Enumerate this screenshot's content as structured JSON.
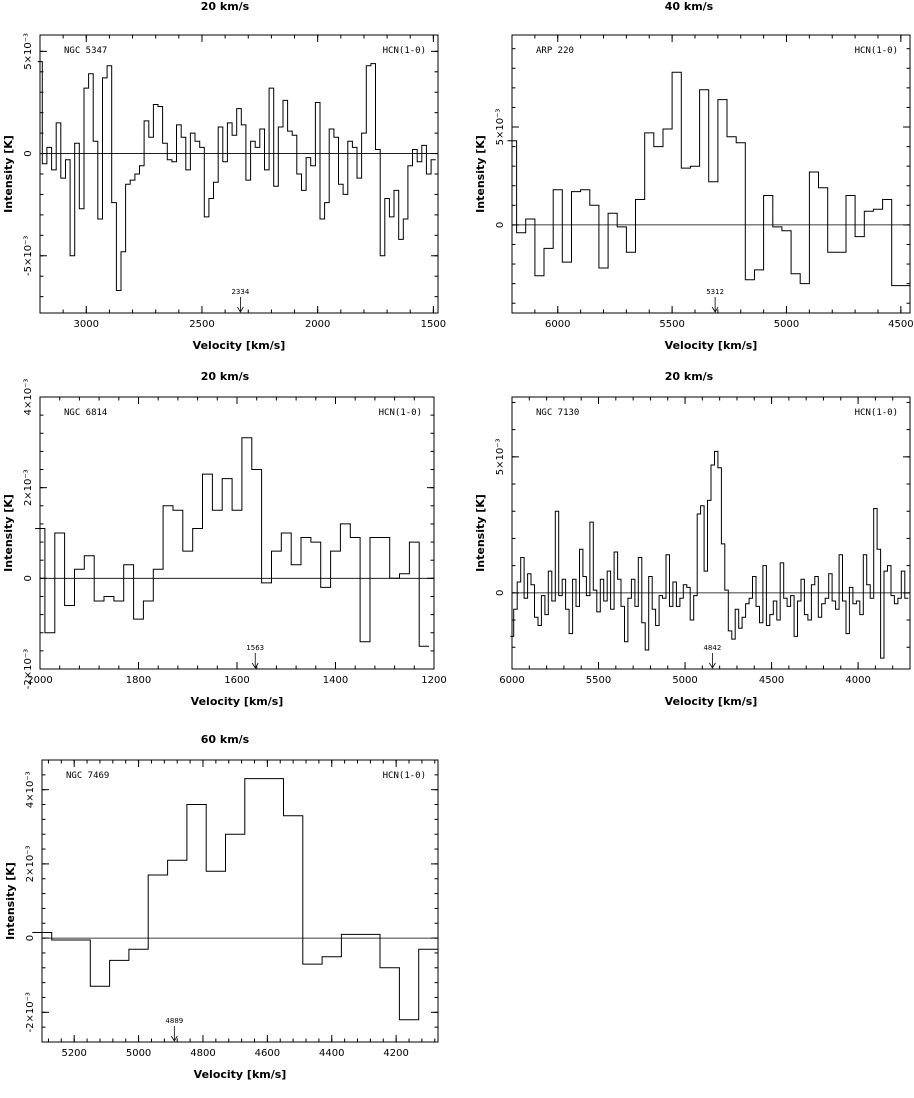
{
  "chart_data": [
    {
      "type": "line",
      "resolution_label": "20 km/s",
      "galaxy": "NGC 5347",
      "line": "HCN(1-0)",
      "xlabel": "Velocity  [km/s]",
      "ylabel": "Intensity [K]",
      "xlim": [
        3200,
        1480
      ],
      "ylim": [
        -0.0078,
        0.0058
      ],
      "xticks": [
        3000,
        2500,
        2000,
        1500
      ],
      "yticks": [
        -0.005,
        0,
        0.005
      ],
      "ytick_labels": [
        "-5×10⁻³",
        "0",
        "5×10⁻³"
      ],
      "marker": {
        "label": "2334",
        "x": 2334
      },
      "series": [
        {
          "x": [
            3200,
            3180,
            3160,
            3140,
            3120,
            3100,
            3080,
            3060,
            3040,
            3020,
            3000,
            2980,
            2960,
            2940,
            2920,
            2900,
            2880,
            2860,
            2840,
            2820,
            2800,
            2780,
            2760,
            2740,
            2720,
            2700,
            2680,
            2660,
            2640,
            2620,
            2600,
            2580,
            2560,
            2540,
            2520,
            2500,
            2480,
            2460,
            2440,
            2420,
            2400,
            2380,
            2360,
            2340,
            2320,
            2300,
            2280,
            2260,
            2240,
            2220,
            2200,
            2180,
            2160,
            2140,
            2120,
            2100,
            2080,
            2060,
            2040,
            2020,
            2000,
            1980,
            1960,
            1940,
            1920,
            1900,
            1880,
            1860,
            1840,
            1820,
            1800,
            1780,
            1760,
            1740,
            1720,
            1700,
            1680,
            1660,
            1640,
            1620,
            1600,
            1580,
            1560,
            1540,
            1520,
            1500
          ],
          "y": [
            4.5,
            -0.5,
            0.3,
            -0.8,
            1.5,
            -1.2,
            -0.3,
            -5,
            0.5,
            -2.7,
            3.2,
            3.9,
            0.6,
            -3.2,
            3.7,
            4.3,
            -2.4,
            -6.7,
            -4.8,
            -1.5,
            -1.3,
            -1.0,
            -0.6,
            1.6,
            0.8,
            2.4,
            2.3,
            0.5,
            -0.3,
            -0.4,
            1.4,
            0.8,
            -0.8,
            1.0,
            0.6,
            0.3,
            -3.1,
            -2.2,
            -1.4,
            1.3,
            -0.4,
            1.5,
            0.9,
            2.2,
            1.4,
            -1.3,
            0.6,
            0.3,
            1.2,
            -0.8,
            3.2,
            -1.6,
            1.3,
            2.6,
            1.1,
            0.9,
            -1.0,
            -1.8,
            -0.2,
            -0.6,
            2.5,
            -3.2,
            -2.4,
            1.2,
            0.8,
            -1.5,
            -2.0,
            0.6,
            0.3,
            -1.2,
            1.0,
            4.3,
            4.4,
            0.2,
            -5,
            -2.2,
            -3.1,
            -1.8,
            -4.2,
            -3.2,
            -0.6,
            0.2,
            -0.4,
            0.4,
            -1.0,
            -0.3
          ],
          "y_scale": 0.001
        }
      ]
    },
    {
      "type": "line",
      "resolution_label": "40 km/s",
      "galaxy": "ARP 220",
      "line": "HCN(1-0)",
      "xlabel": "Velocity  [km/s]",
      "ylabel": "Intensity [K]",
      "xlim": [
        6200,
        4460
      ],
      "ylim": [
        -0.0045,
        0.0097
      ],
      "xticks": [
        6000,
        5500,
        5000,
        4500
      ],
      "yticks": [
        0,
        0.005
      ],
      "ytick_labels": [
        "0",
        "5×10⁻³"
      ],
      "marker": {
        "label": "5312",
        "x": 5312
      },
      "series": [
        {
          "x": [
            6200,
            6160,
            6120,
            6080,
            6040,
            6000,
            5960,
            5920,
            5880,
            5840,
            5800,
            5760,
            5720,
            5680,
            5640,
            5600,
            5560,
            5520,
            5480,
            5440,
            5400,
            5360,
            5320,
            5280,
            5240,
            5200,
            5160,
            5120,
            5080,
            5040,
            5000,
            4960,
            4920,
            4880,
            4840,
            4800,
            4760,
            4720,
            4680,
            4640,
            4600,
            4560,
            4520,
            4480
          ],
          "y": [
            4.3,
            -0.4,
            0.3,
            -2.6,
            -1.2,
            1.8,
            -1.9,
            1.7,
            1.8,
            1.0,
            -2.2,
            0.6,
            -0.1,
            -1.4,
            1.3,
            4.7,
            4.0,
            4.9,
            7.8,
            2.9,
            3.0,
            6.9,
            2.2,
            6.4,
            4.5,
            4.2,
            -2.8,
            -2.3,
            1.5,
            -0.1,
            -0.3,
            -2.5,
            -3.0,
            2.7,
            1.9,
            -1.4,
            -1.4,
            1.5,
            -0.6,
            0.7,
            0.8,
            1.3,
            -3.1,
            -3.1
          ],
          "y_scale": 0.001
        }
      ]
    },
    {
      "type": "line",
      "resolution_label": "20 km/s",
      "galaxy": "NGC 6814",
      "line": "HCN(1-0)",
      "xlabel": "Velocity  [km/s]",
      "ylabel": "Intensity [K]",
      "xlim": [
        2000,
        1200
      ],
      "ylim": [
        -0.002,
        0.004
      ],
      "xticks": [
        2000,
        1800,
        1600,
        1400,
        1200
      ],
      "xtick_labels": [
        "2000",
        "1800",
        "1600",
        "1400",
        "1200"
      ],
      "yticks": [
        -0.002,
        0,
        0.002,
        0.004
      ],
      "ytick_labels": [
        "-2×10⁻³",
        "0",
        "2×10⁻³",
        "4×10⁻³"
      ],
      "marker": {
        "label": "1563",
        "x": 1563
      },
      "series": [
        {
          "x": [
            2000,
            1980,
            1960,
            1940,
            1920,
            1900,
            1880,
            1860,
            1840,
            1820,
            1800,
            1780,
            1760,
            1740,
            1720,
            1700,
            1680,
            1660,
            1640,
            1620,
            1600,
            1580,
            1560,
            1540,
            1520,
            1500,
            1480,
            1460,
            1440,
            1420,
            1400,
            1380,
            1360,
            1340,
            1320,
            1300,
            1280,
            1260,
            1240,
            1220
          ],
          "y": [
            1.1,
            -1.2,
            1.0,
            -0.6,
            0.2,
            0.5,
            -0.5,
            -0.4,
            -0.5,
            0.3,
            -0.9,
            -0.5,
            0.2,
            1.6,
            1.5,
            0.6,
            1.1,
            2.3,
            1.5,
            2.2,
            1.5,
            3.1,
            2.4,
            -0.1,
            0.6,
            1.0,
            0.3,
            0.9,
            0.8,
            -0.2,
            0.6,
            1.2,
            0.9,
            -1.4,
            0.9,
            0.9,
            0.0,
            0.1,
            0.8,
            -1.5
          ],
          "y_scale": 0.001
        }
      ]
    },
    {
      "type": "line",
      "resolution_label": "20 km/s",
      "galaxy": "NGC 7130",
      "line": "HCN(1-0)",
      "xlabel": "Velocity  [km/s]",
      "ylabel": "Intensity [K]",
      "xlim": [
        6000,
        3700
      ],
      "ylim": [
        -0.0028,
        0.0072
      ],
      "xticks": [
        6000,
        5500,
        5000,
        4500,
        4000
      ],
      "yticks": [
        0,
        0.005
      ],
      "ytick_labels": [
        "0",
        "5×10⁻³"
      ],
      "marker": {
        "label": "4842",
        "x": 4842
      },
      "series": [
        {
          "x": [
            6000,
            5980,
            5960,
            5940,
            5920,
            5900,
            5880,
            5860,
            5840,
            5820,
            5800,
            5780,
            5760,
            5740,
            5720,
            5700,
            5680,
            5660,
            5640,
            5620,
            5600,
            5580,
            5560,
            5540,
            5520,
            5500,
            5480,
            5460,
            5440,
            5420,
            5400,
            5380,
            5360,
            5340,
            5320,
            5300,
            5280,
            5260,
            5240,
            5220,
            5200,
            5180,
            5160,
            5140,
            5120,
            5100,
            5080,
            5060,
            5040,
            5020,
            5000,
            4980,
            4960,
            4940,
            4920,
            4900,
            4880,
            4860,
            4840,
            4820,
            4800,
            4780,
            4760,
            4740,
            4720,
            4700,
            4680,
            4660,
            4640,
            4620,
            4600,
            4580,
            4560,
            4540,
            4520,
            4500,
            4480,
            4460,
            4440,
            4420,
            4400,
            4380,
            4360,
            4340,
            4320,
            4300,
            4280,
            4260,
            4240,
            4220,
            4200,
            4180,
            4160,
            4140,
            4120,
            4100,
            4080,
            4060,
            4040,
            4020,
            4000,
            3980,
            3960,
            3940,
            3920,
            3900,
            3880,
            3860,
            3840,
            3820,
            3800,
            3780,
            3760,
            3740,
            3720
          ],
          "y": [
            -1.6,
            -0.6,
            0.4,
            1.3,
            -0.2,
            0.7,
            0.3,
            -0.9,
            -1.2,
            -0.1,
            -0.8,
            0.8,
            -0.3,
            3.0,
            -0.1,
            0.5,
            -0.6,
            -1.5,
            0.5,
            -0.5,
            1.6,
            0.6,
            -0.1,
            2.6,
            0.1,
            -0.7,
            0.5,
            -0.3,
            0.8,
            -0.6,
            1.5,
            0.5,
            -0.5,
            -1.8,
            -0.2,
            0.5,
            -0.5,
            1.3,
            -1.1,
            -2.1,
            0.6,
            -0.6,
            -1.2,
            -0.1,
            -0.2,
            1.4,
            -0.5,
            0.4,
            -0.5,
            -0.2,
            0.3,
            0.2,
            -1.0,
            -0.1,
            2.9,
            3.2,
            0.8,
            3.4,
            4.7,
            5.2,
            4.6,
            1.8,
            0.1,
            -1.4,
            -1.7,
            -0.6,
            -1.3,
            -0.9,
            -0.4,
            -0.2,
            0.6,
            -0.5,
            -1.1,
            1.0,
            -1.2,
            -0.8,
            -0.3,
            -1.0,
            1.1,
            -0.2,
            -0.5,
            -0.1,
            -1.6,
            -0.3,
            0.5,
            -0.8,
            -1.0,
            0.3,
            0.6,
            -0.9,
            -0.4,
            -0.2,
            0.7,
            -0.3,
            -0.6,
            1.4,
            -0.3,
            -1.5,
            0.2,
            -0.4,
            -0.3,
            -0.8,
            1.4,
            0.3,
            -0.2,
            3.1,
            1.6,
            -2.4,
            0.8,
            1.0,
            -0.1,
            -0.4,
            -0.2,
            0.8,
            -0.2
          ],
          "y_scale": 0.001
        }
      ]
    },
    {
      "type": "line",
      "resolution_label": "60 km/s",
      "galaxy": "NGC 7469",
      "line": "HCN(1-0)",
      "xlabel": "Velocity  [km/s]",
      "ylabel": "Intensity [K]",
      "xlim": [
        5300,
        4070
      ],
      "ylim": [
        -0.0028,
        0.0048
      ],
      "xticks": [
        5200,
        5000,
        4800,
        4600,
        4400,
        4200
      ],
      "yticks": [
        -0.002,
        0,
        0.002,
        0.004
      ],
      "ytick_labels": [
        "-2×10⁻³",
        "0",
        "2×10⁻³",
        "4×10⁻³"
      ],
      "marker": {
        "label": "4889",
        "x": 4889
      },
      "series": [
        {
          "x": [
            5300,
            5240,
            5180,
            5120,
            5060,
            5000,
            4940,
            4880,
            4820,
            4760,
            4700,
            4640,
            4580,
            4520,
            4460,
            4400,
            4340,
            4280,
            4220,
            4160,
            4100
          ],
          "y": [
            0.15,
            -0.05,
            -0.05,
            -1.3,
            -0.6,
            -0.3,
            1.7,
            2.1,
            3.6,
            1.8,
            2.8,
            4.3,
            4.3,
            3.3,
            -0.7,
            -0.5,
            0.1,
            0.1,
            -0.8,
            -2.2,
            -0.3
          ],
          "y_scale": 0.001
        }
      ]
    }
  ]
}
